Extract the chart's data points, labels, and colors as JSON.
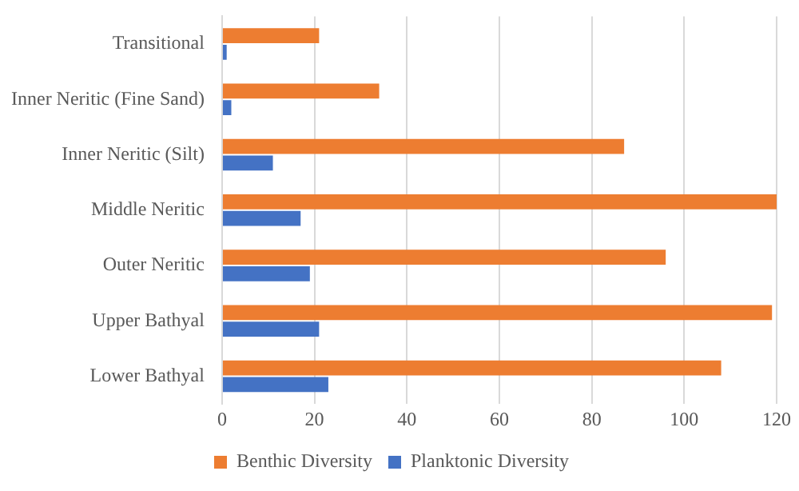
{
  "chart_data": {
    "type": "bar",
    "orientation": "horizontal",
    "categories": [
      "Transitional",
      "Inner Neritic (Fine Sand)",
      "Inner Neritic (Silt)",
      "Middle Neritic",
      "Outer Neritic",
      "Upper Bathyal",
      "Lower Bathyal"
    ],
    "series": [
      {
        "name": "Benthic Diversity",
        "color": "#ed7d31",
        "values": [
          21,
          34,
          87,
          120,
          96,
          119,
          108
        ]
      },
      {
        "name": "Planktonic Diversity",
        "color": "#4472c4",
        "values": [
          1,
          2,
          11,
          17,
          19,
          21,
          23
        ]
      }
    ],
    "xlim": [
      0,
      120
    ],
    "xticks": [
      0,
      20,
      40,
      60,
      80,
      100,
      120
    ],
    "grid": "x",
    "legend": "bottom"
  }
}
